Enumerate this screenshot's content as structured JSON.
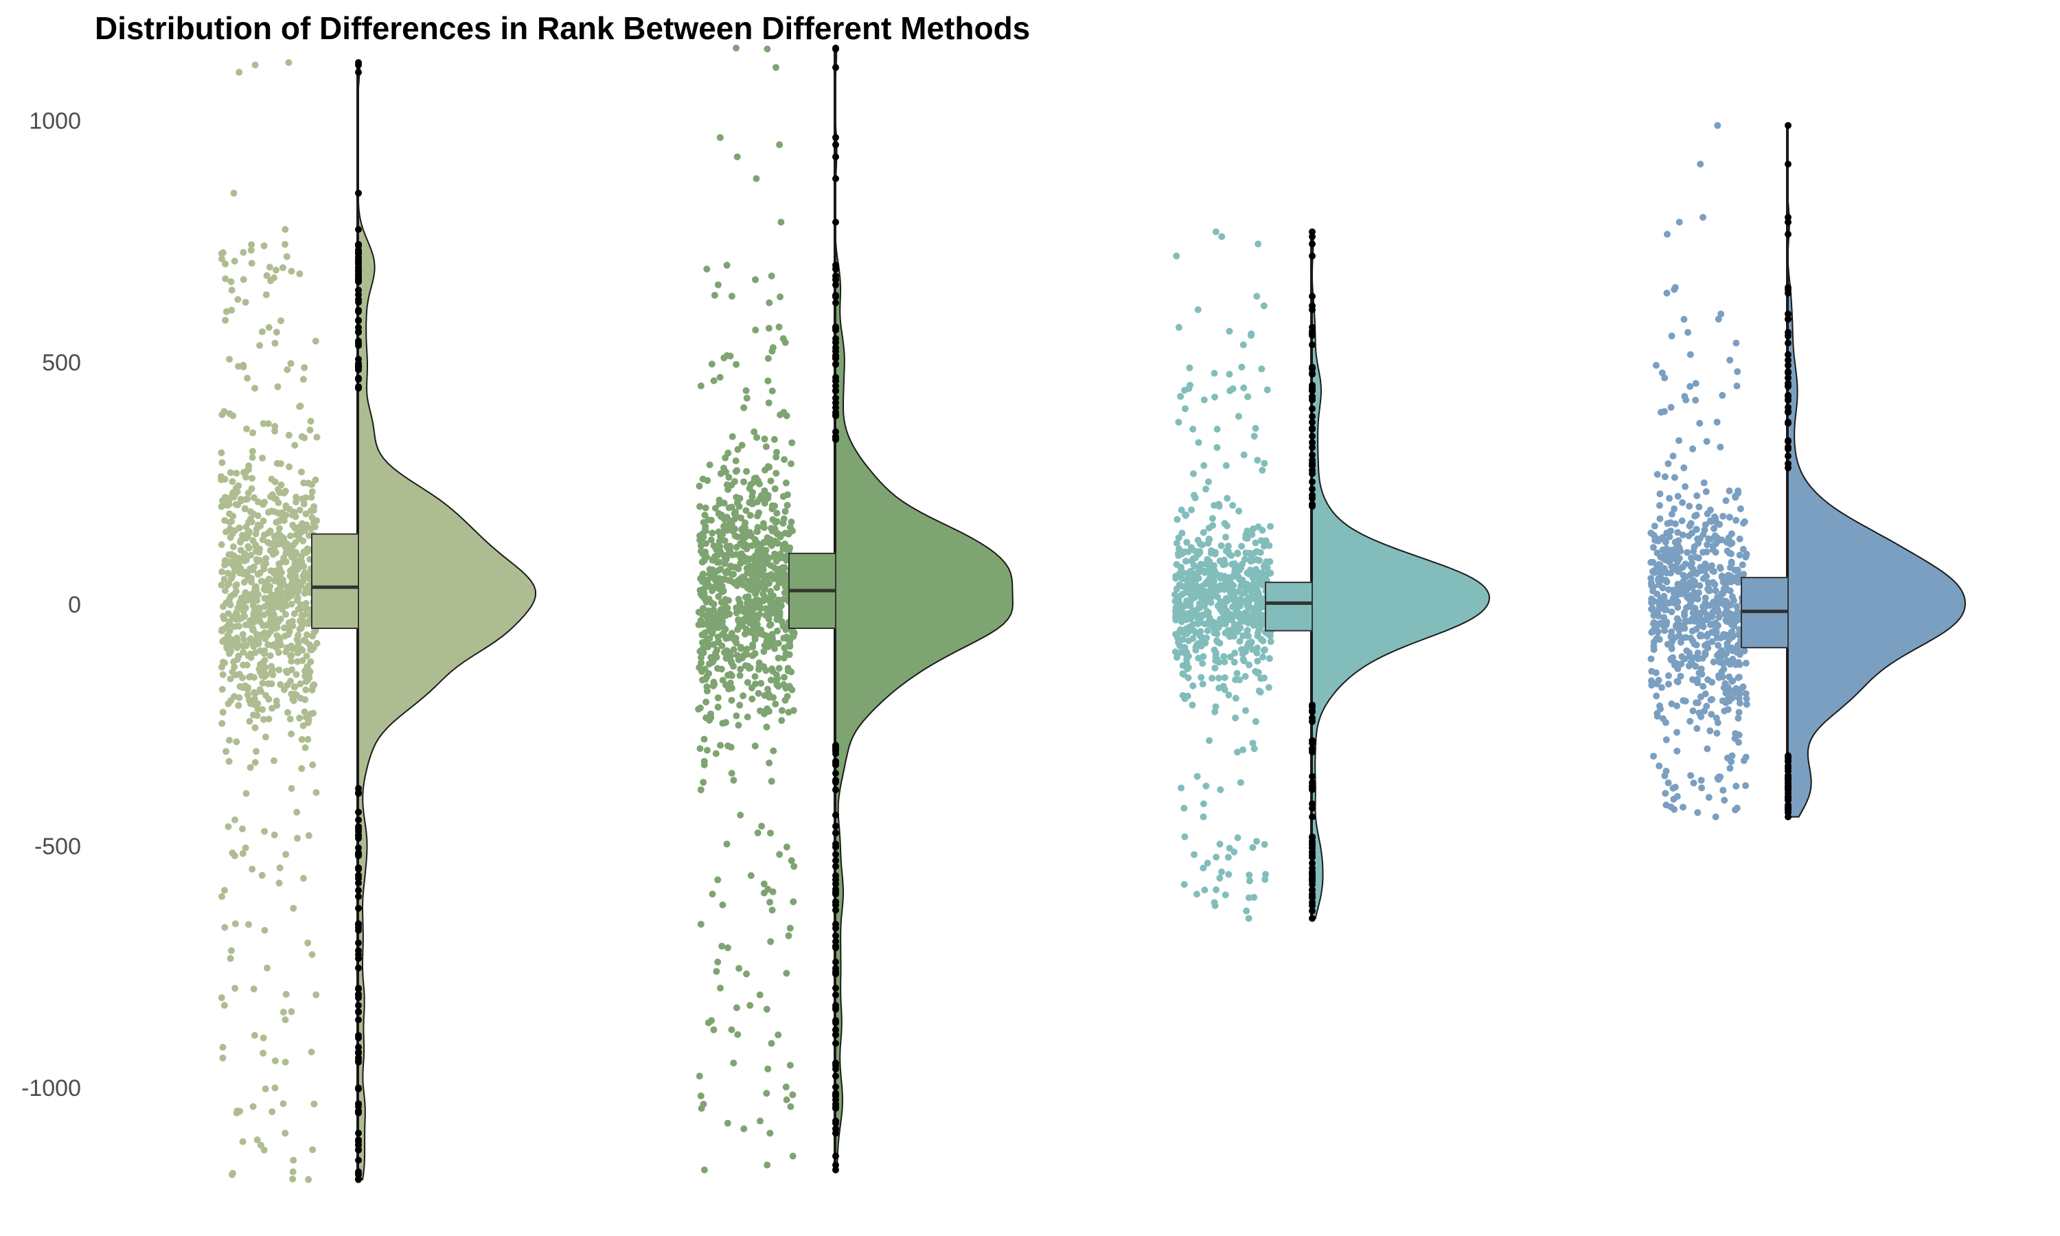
{
  "chart_data": {
    "type": "raincloud",
    "title": "Distribution of Differences in Rank Between Different Methods",
    "xlabel": "",
    "ylabel": "",
    "ylim": [
      -1250,
      1150
    ],
    "yticks": [
      1000,
      500,
      0,
      -500,
      -1000
    ],
    "grid": false,
    "legend": "none",
    "series": [
      {
        "color": "#aebd91",
        "n_points": 900,
        "range": [
          -1190,
          1120
        ],
        "quartiles": [
          -50,
          35,
          145
        ],
        "density_peak": 20,
        "density_spread": 140,
        "sparse_outliers": [
          1120,
          1115,
          1100,
          850,
          775,
          725,
          -1190,
          -1180,
          -1150
        ]
      },
      {
        "color": "#7ea471",
        "n_points": 900,
        "range": [
          -1170,
          1150
        ],
        "quartiles": [
          -50,
          28,
          105
        ],
        "density_peak": 25,
        "density_spread": 120,
        "sparse_outliers": [
          1150,
          1148,
          1110,
          965,
          950,
          925,
          880,
          790,
          -1170,
          -1160
        ]
      },
      {
        "color": "#82bdbb",
        "n_points": 700,
        "range": [
          -650,
          770
        ],
        "quartiles": [
          -55,
          2,
          45
        ],
        "density_peak": 5,
        "density_spread": 75,
        "sparse_outliers": [
          770,
          760,
          745,
          720,
          -650,
          -440
        ]
      },
      {
        "color": "#7a9fc0",
        "n_points": 700,
        "range": [
          -440,
          990
        ],
        "quartiles": [
          -90,
          -15,
          55
        ],
        "density_peak": 0,
        "density_spread": 110,
        "sparse_outliers": [
          990,
          910,
          800,
          790,
          765,
          -440,
          -420,
          -380
        ]
      }
    ]
  }
}
